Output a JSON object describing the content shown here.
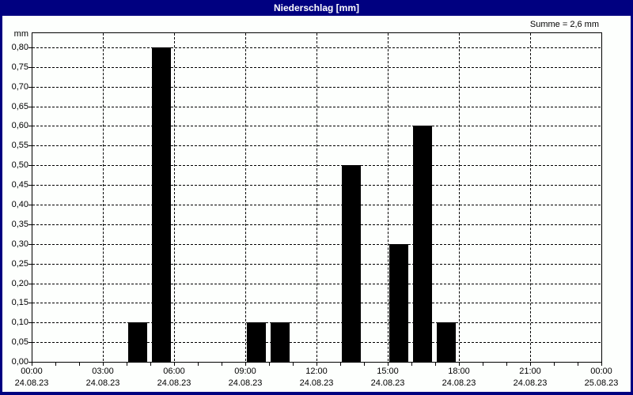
{
  "window": {
    "title": "Niederschlag [mm]",
    "summary": "Summe = 2,6 mm"
  },
  "colors": {
    "title_bar": "#000080",
    "title_text": "#ffffff",
    "window_border": "#000080",
    "plot_background": "#fdfffd",
    "bar": "#000000",
    "grid": "#000000"
  },
  "chart_data": {
    "type": "bar",
    "title": "Niederschlag [mm]",
    "ylabel": "mm",
    "unit": "mm",
    "grid": "dashed",
    "y_axis": {
      "min": 0.0,
      "max": 0.8,
      "tick_step": 0.05,
      "tick_labels": [
        "0,00",
        "0,05",
        "0,10",
        "0,15",
        "0,20",
        "0,25",
        "0,30",
        "0,35",
        "0,40",
        "0,45",
        "0,50",
        "0,55",
        "0,60",
        "0,65",
        "0,70",
        "0,75",
        "0,80"
      ]
    },
    "x_axis": {
      "hours_total": 24,
      "minor_tick_hours": 1,
      "major_tick_hours": 3,
      "major_ticks": [
        {
          "time": "00:00",
          "date": "24.08.23"
        },
        {
          "time": "03:00",
          "date": "24.08.23"
        },
        {
          "time": "06:00",
          "date": "24.08.23"
        },
        {
          "time": "09:00",
          "date": "24.08.23"
        },
        {
          "time": "12:00",
          "date": "24.08.23"
        },
        {
          "time": "15:00",
          "date": "24.08.23"
        },
        {
          "time": "18:00",
          "date": "24.08.23"
        },
        {
          "time": "21:00",
          "date": "24.08.23"
        },
        {
          "time": "00:00",
          "date": "25.08.23"
        }
      ]
    },
    "bars": [
      {
        "hour": 4,
        "start": "04:00",
        "value": 0.1
      },
      {
        "hour": 5,
        "start": "05:00",
        "value": 0.8
      },
      {
        "hour": 9,
        "start": "09:00",
        "value": 0.1
      },
      {
        "hour": 10,
        "start": "10:00",
        "value": 0.1
      },
      {
        "hour": 13,
        "start": "13:00",
        "value": 0.5
      },
      {
        "hour": 15,
        "start": "15:00",
        "value": 0.3
      },
      {
        "hour": 16,
        "start": "16:00",
        "value": 0.6
      },
      {
        "hour": 17,
        "start": "17:00",
        "value": 0.1
      }
    ],
    "sum_mm": 2.6
  }
}
